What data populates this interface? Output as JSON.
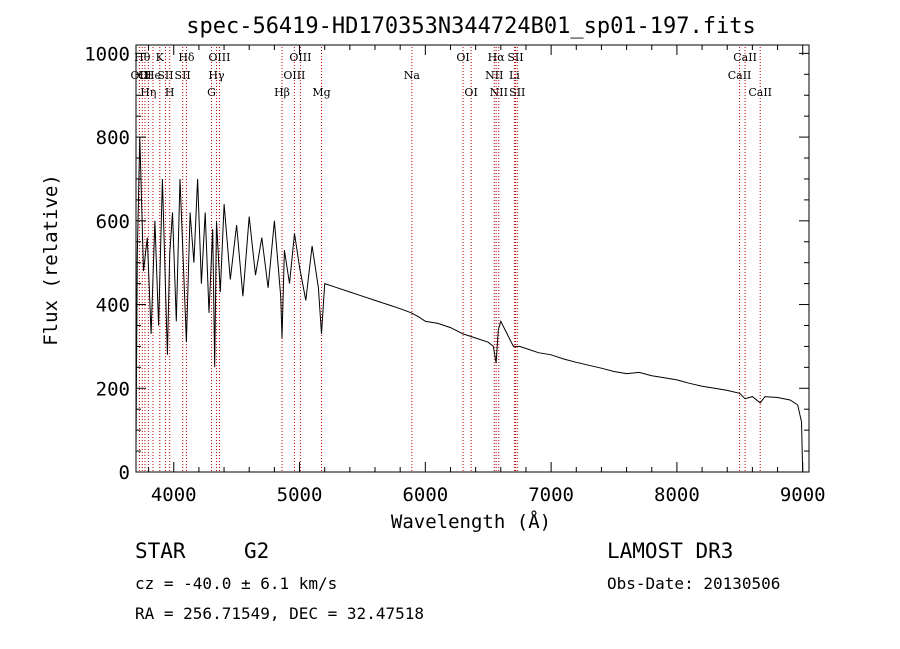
{
  "chart_data": {
    "type": "line",
    "title": "spec-56419-HD170353N344724B01_sp01-197.fits",
    "xlabel": "Wavelength (Å)",
    "ylabel": "Flux (relative)",
    "xlim": [
      3700,
      9050
    ],
    "ylim": [
      0,
      1020
    ],
    "x_ticks": [
      4000,
      5000,
      6000,
      7000,
      8000,
      9000
    ],
    "y_ticks": [
      0,
      200,
      400,
      600,
      800,
      1000
    ],
    "grid": false,
    "line_color": "#000000",
    "marker_line_color": "#c00000",
    "series": [
      {
        "name": "flux",
        "x": [
          3700,
          3710,
          3730,
          3760,
          3790,
          3820,
          3850,
          3880,
          3910,
          3935,
          3950,
          3968,
          3990,
          4020,
          4050,
          4080,
          4101,
          4130,
          4160,
          4190,
          4220,
          4250,
          4280,
          4310,
          4326,
          4340,
          4370,
          4400,
          4450,
          4500,
          4550,
          4600,
          4650,
          4700,
          4750,
          4800,
          4850,
          4861,
          4880,
          4920,
          4960,
          5000,
          5050,
          5100,
          5150,
          5175,
          5200,
          5300,
          5400,
          5500,
          5600,
          5700,
          5800,
          5890,
          5950,
          6000,
          6100,
          6200,
          6300,
          6400,
          6500,
          6540,
          6563,
          6580,
          6600,
          6650,
          6700,
          6750,
          6800,
          6900,
          7000,
          7100,
          7200,
          7300,
          7400,
          7500,
          7600,
          7700,
          7800,
          7900,
          8000,
          8100,
          8200,
          8300,
          8400,
          8498,
          8542,
          8600,
          8662,
          8700,
          8800,
          8900,
          8960,
          8990,
          9000
        ],
        "y": [
          60,
          520,
          800,
          480,
          560,
          330,
          600,
          350,
          700,
          430,
          280,
          520,
          620,
          360,
          700,
          470,
          310,
          620,
          500,
          700,
          450,
          620,
          380,
          580,
          250,
          600,
          430,
          640,
          460,
          590,
          420,
          610,
          470,
          560,
          440,
          600,
          420,
          320,
          530,
          450,
          570,
          490,
          410,
          540,
          440,
          330,
          450,
          440,
          430,
          420,
          410,
          400,
          390,
          380,
          370,
          360,
          355,
          345,
          330,
          320,
          310,
          300,
          260,
          340,
          360,
          330,
          300,
          300,
          295,
          285,
          280,
          270,
          262,
          255,
          248,
          240,
          235,
          238,
          230,
          225,
          220,
          212,
          205,
          200,
          195,
          188,
          175,
          180,
          165,
          180,
          178,
          172,
          160,
          120,
          0
        ]
      }
    ],
    "line_markers": [
      {
        "wl": 3727,
        "label": "OII",
        "row": 2
      },
      {
        "wl": 3750,
        "label": "Hθ",
        "row": 1
      },
      {
        "wl": 3771,
        "label": "OI",
        "row": 2
      },
      {
        "wl": 3798,
        "label": "Hη",
        "row": 3
      },
      {
        "wl": 3835,
        "label": "He",
        "row": 2
      },
      {
        "wl": 3889,
        "label": "K",
        "row": 1
      },
      {
        "wl": 3934,
        "label": "SII",
        "row": 2
      },
      {
        "wl": 3968,
        "label": "H",
        "row": 3
      },
      {
        "wl": 4071,
        "label": "SII",
        "row": 2
      },
      {
        "wl": 4101,
        "label": "Hδ",
        "row": 1
      },
      {
        "wl": 4300,
        "label": "G",
        "row": 3
      },
      {
        "wl": 4340,
        "label": "Hγ",
        "row": 2
      },
      {
        "wl": 4363,
        "label": "OIII",
        "row": 1
      },
      {
        "wl": 4861,
        "label": "Hβ",
        "row": 3
      },
      {
        "wl": 4959,
        "label": "OIII",
        "row": 2
      },
      {
        "wl": 5007,
        "label": "OIII",
        "row": 1
      },
      {
        "wl": 5175,
        "label": "Mg",
        "row": 3
      },
      {
        "wl": 5893,
        "label": "Na",
        "row": 2
      },
      {
        "wl": 6300,
        "label": "OI",
        "row": 1
      },
      {
        "wl": 6364,
        "label": "OI",
        "row": 3
      },
      {
        "wl": 6548,
        "label": "NII",
        "row": 2
      },
      {
        "wl": 6563,
        "label": "Hα",
        "row": 1
      },
      {
        "wl": 6584,
        "label": "NII",
        "row": 3
      },
      {
        "wl": 6708,
        "label": "Li",
        "row": 2
      },
      {
        "wl": 6717,
        "label": "SII",
        "row": 1
      },
      {
        "wl": 6731,
        "label": "SII",
        "row": 3
      },
      {
        "wl": 8498,
        "label": "CaII",
        "row": 2
      },
      {
        "wl": 8542,
        "label": "CaII",
        "row": 1
      },
      {
        "wl": 8662,
        "label": "CaII",
        "row": 3
      }
    ]
  },
  "info": {
    "object_class": "STAR",
    "subclass": "G2",
    "survey": "LAMOST DR3",
    "redshift": "cz = -40.0 ± 6.1 km/s",
    "obs_date": "Obs-Date: 20130506",
    "coords": "RA = 256.71549, DEC =  32.47518"
  }
}
